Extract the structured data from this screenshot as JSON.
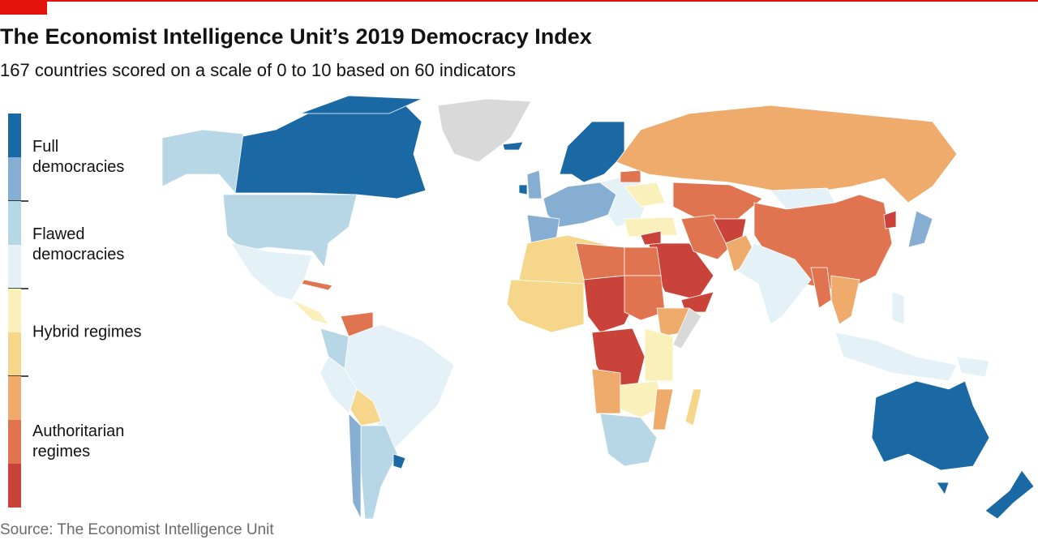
{
  "header": {
    "title": "The Economist Intelligence Unit’s 2019 Democracy Index",
    "subtitle": "167 countries scored on a scale of 0 to 10 based on 60 indicators"
  },
  "legend": {
    "groups": [
      {
        "label": "Full democracies",
        "colors": [
          "#1a69a4",
          "#86aed3"
        ]
      },
      {
        "label": "Flawed democracies",
        "colors": [
          "#b7d6e6",
          "#e4f1f7"
        ]
      },
      {
        "label": "Hybrid regimes",
        "colors": [
          "#f9f0bc",
          "#f6d68a"
        ]
      },
      {
        "label": "Authoritarian regimes",
        "colors": [
          "#efab6b",
          "#e07450",
          "#c9433a"
        ]
      }
    ],
    "no_data_color": "#d9d9d9"
  },
  "footer": {
    "source": "Source: The Economist Intelligence Unit"
  }
}
